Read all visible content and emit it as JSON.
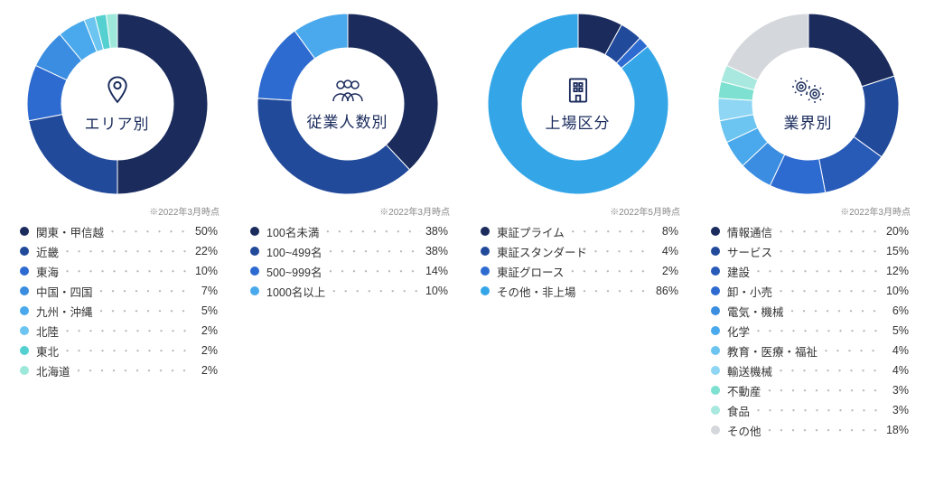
{
  "donut": {
    "outer_r": 100,
    "inner_r": 62,
    "size": 210
  },
  "charts": [
    {
      "title": "エリア別",
      "icon": "pin-icon",
      "note": "※2022年3月時点",
      "items": [
        {
          "label": "関東・甲信越",
          "value": 50,
          "color": "#1a2b5c"
        },
        {
          "label": "近畿",
          "value": 22,
          "color": "#224a9a"
        },
        {
          "label": "東海",
          "value": 10,
          "color": "#2e6bd0"
        },
        {
          "label": "中国・四国",
          "value": 7,
          "color": "#3a8de0"
        },
        {
          "label": "九州・沖縄",
          "value": 5,
          "color": "#4aa9ec"
        },
        {
          "label": "北陸",
          "value": 2,
          "color": "#6cc4f0"
        },
        {
          "label": "東北",
          "value": 2,
          "color": "#55d0d0"
        },
        {
          "label": "北海道",
          "value": 2,
          "color": "#9de8da"
        }
      ]
    },
    {
      "title": "従業人数別",
      "icon": "people-icon",
      "note": "※2022年3月時点",
      "items": [
        {
          "label": "100名未満",
          "value": 38,
          "color": "#1a2b5c"
        },
        {
          "label": "100~499名",
          "value": 38,
          "color": "#224a9a"
        },
        {
          "label": "500~999名",
          "value": 14,
          "color": "#2e6bd0"
        },
        {
          "label": "1000名以上",
          "value": 10,
          "color": "#4aa9ec"
        }
      ]
    },
    {
      "title": "上場区分",
      "icon": "building-icon",
      "note": "※2022年5月時点",
      "items": [
        {
          "label": "東証プライム",
          "value": 8,
          "color": "#1a2b5c"
        },
        {
          "label": "東証スタンダード",
          "value": 4,
          "color": "#224a9a"
        },
        {
          "label": "東証グロース",
          "value": 2,
          "color": "#2e6bd0"
        },
        {
          "label": "その他・非上場",
          "value": 86,
          "color": "#34a6e8"
        }
      ]
    },
    {
      "title": "業界別",
      "icon": "gears-icon",
      "note": "※2022年3月時点",
      "items": [
        {
          "label": "情報通信",
          "value": 20,
          "color": "#1a2b5c"
        },
        {
          "label": "サービス",
          "value": 15,
          "color": "#224a9a"
        },
        {
          "label": "建設",
          "value": 12,
          "color": "#285ab8"
        },
        {
          "label": "卸・小売",
          "value": 10,
          "color": "#2e6bd0"
        },
        {
          "label": "電気・機械",
          "value": 6,
          "color": "#3a8de0"
        },
        {
          "label": "化学",
          "value": 5,
          "color": "#4aa9ec"
        },
        {
          "label": "教育・医療・福祉",
          "value": 4,
          "color": "#6cc4f0"
        },
        {
          "label": "輸送機械",
          "value": 4,
          "color": "#8ed6f4"
        },
        {
          "label": "不動産",
          "value": 3,
          "color": "#7de0d0"
        },
        {
          "label": "食品",
          "value": 3,
          "color": "#a8e8de"
        },
        {
          "label": "その他",
          "value": 18,
          "color": "#d4d7db"
        }
      ]
    }
  ]
}
